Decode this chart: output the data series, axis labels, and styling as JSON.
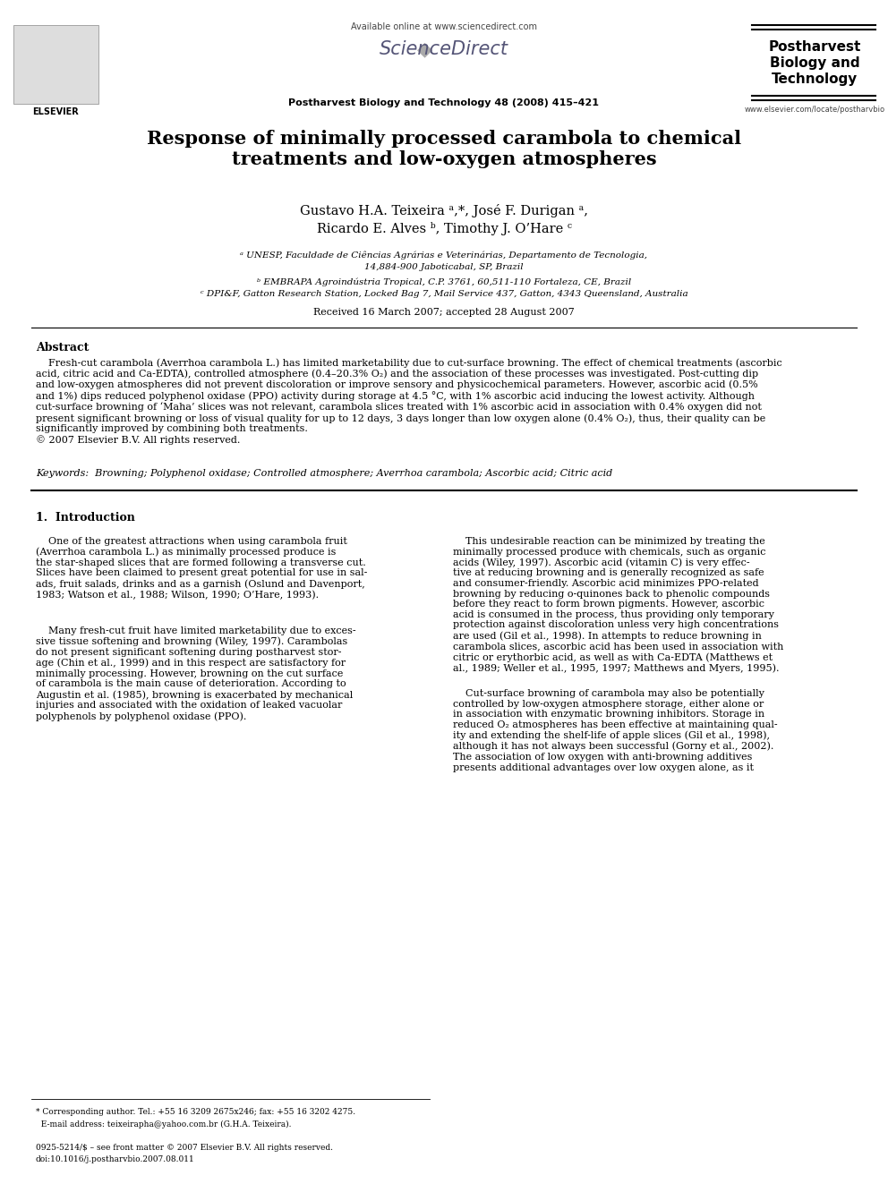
{
  "background_color": "#ffffff",
  "page_width": 9.92,
  "page_height": 13.23,
  "header": {
    "available_online_text": "Available online at www.sciencedirect.com",
    "journal_name_center": "Postharvest Biology and Technology 48 (2008) 415–421",
    "journal_name_right_line1": "Postharvest",
    "journal_name_right_line2": "Biology and",
    "journal_name_right_line3": "Technology",
    "elsevier_text": "ELSEVIER",
    "url_right": "www.elsevier.com/locate/postharvbio"
  },
  "title": "Response of minimally processed carambola to chemical\ntreatments and low-oxygen atmospheres",
  "authors_line1": "Gustavo H.A. Teixeira ᵃ,*, José F. Durigan ᵃ,",
  "authors_line2": "Ricardo E. Alves ᵇ, Timothy J. O’Hare ᶜ",
  "affiliation_a": "ᵃ UNESP, Faculdade de Ciências Agrárias e Veterinárias, Departamento de Tecnologia,",
  "affiliation_a2": "14,884-900 Jaboticabal, SP, Brazil",
  "affiliation_b": "ᵇ EMBRAPA Agroindústria Tropical, C.P. 3761, 60,511-110 Fortaleza, CE, Brazil",
  "affiliation_c": "ᶜ DPI&F, Gatton Research Station, Locked Bag 7, Mail Service 437, Gatton, 4343 Queensland, Australia",
  "received": "Received 16 March 2007; accepted 28 August 2007",
  "abstract_title": "Abstract",
  "abstract_text": "    Fresh-cut carambola (Averrhoa carambola L.) has limited marketability due to cut-surface browning. The effect of chemical treatments (ascorbic\nacid, citric acid and Ca-EDTA), controlled atmosphere (0.4–20.3% O₂) and the association of these processes was investigated. Post-cutting dip\nand low-oxygen atmospheres did not prevent discoloration or improve sensory and physicochemical parameters. However, ascorbic acid (0.5%\nand 1%) dips reduced polyphenol oxidase (PPO) activity during storage at 4.5 °C, with 1% ascorbic acid inducing the lowest activity. Although\ncut-surface browning of ‘Maha’ slices was not relevant, carambola slices treated with 1% ascorbic acid in association with 0.4% oxygen did not\npresent significant browning or loss of visual quality for up to 12 days, 3 days longer than low oxygen alone (0.4% O₂), thus, their quality can be\nsignificantly improved by combining both treatments.\n© 2007 Elsevier B.V. All rights reserved.",
  "keywords_text": "Keywords:  Browning; Polyphenol oxidase; Controlled atmosphere; Averrhoa carambola; Ascorbic acid; Citric acid",
  "section1_title": "1.  Introduction",
  "col1_para1": "    One of the greatest attractions when using carambola fruit\n(Averrhoa carambola L.) as minimally processed produce is\nthe star-shaped slices that are formed following a transverse cut.\nSlices have been claimed to present great potential for use in sal-\nads, fruit salads, drinks and as a garnish (Oslund and Davenport,\n1983; Watson et al., 1988; Wilson, 1990; O’Hare, 1993).",
  "col1_para2": "    Many fresh-cut fruit have limited marketability due to exces-\nsive tissue softening and browning (Wiley, 1997). Carambolas\ndo not present significant softening during postharvest stor-\nage (Chin et al., 1999) and in this respect are satisfactory for\nminimally processing. However, browning on the cut surface\nof carambola is the main cause of deterioration. According to\nAugustin et al. (1985), browning is exacerbated by mechanical\ninjuries and associated with the oxidation of leaked vacuolar\npolyphenols by polyphenol oxidase (PPO).",
  "col2_para1": "    This undesirable reaction can be minimized by treating the\nminimally processed produce with chemicals, such as organic\nacids (Wiley, 1997). Ascorbic acid (vitamin C) is very effec-\ntive at reducing browning and is generally recognized as safe\nand consumer-friendly. Ascorbic acid minimizes PPO-related\nbrowning by reducing o-quinones back to phenolic compounds\nbefore they react to form brown pigments. However, ascorbic\nacid is consumed in the process, thus providing only temporary\nprotection against discoloration unless very high concentrations\nare used (Gil et al., 1998). In attempts to reduce browning in\ncarambola slices, ascorbic acid has been used in association with\ncitric or erythorbic acid, as well as with Ca-EDTA (Matthews et\nal., 1989; Weller et al., 1995, 1997; Matthews and Myers, 1995).",
  "col2_para2": "    Cut-surface browning of carambola may also be potentially\ncontrolled by low-oxygen atmosphere storage, either alone or\nin association with enzymatic browning inhibitors. Storage in\nreduced O₂ atmospheres has been effective at maintaining qual-\nity and extending the shelf-life of apple slices (Gil et al., 1998),\nalthough it has not always been successful (Gorny et al., 2002).\nThe association of low oxygen with anti-browning additives\npresents additional advantages over low oxygen alone, as it",
  "footnote_corresponding": "* Corresponding author. Tel.: +55 16 3209 2675x246; fax: +55 16 3202 4275.",
  "footnote_email": "  E-mail address: teixeirapha@yahoo.com.br (G.H.A. Teixeira).",
  "footnote_issn": "0925-5214/$ – see front matter © 2007 Elsevier B.V. All rights reserved.",
  "footnote_doi": "doi:10.1016/j.postharvbio.2007.08.011"
}
